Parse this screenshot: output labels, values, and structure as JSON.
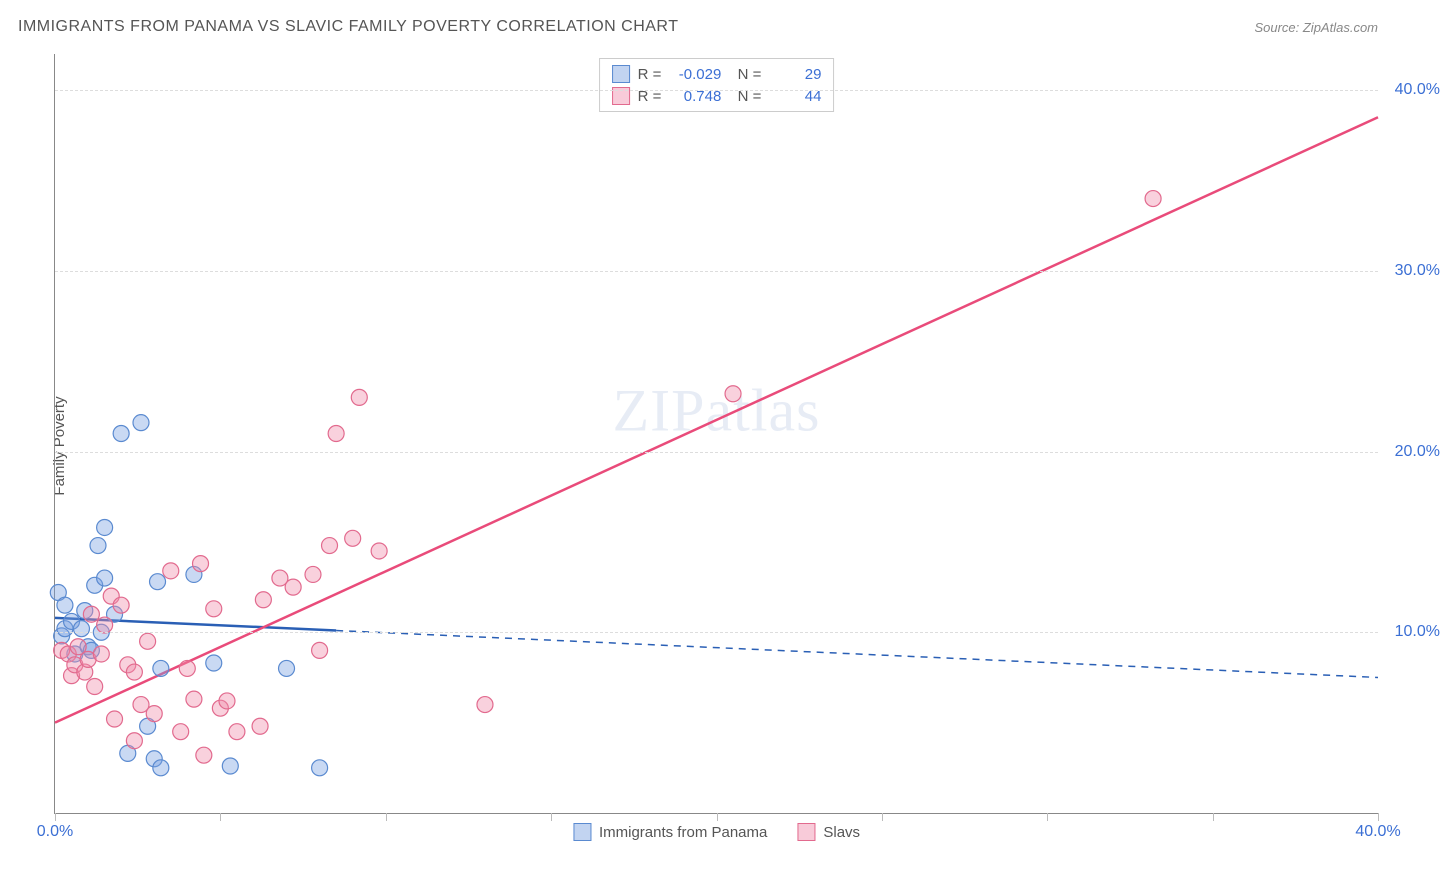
{
  "title": "IMMIGRANTS FROM PANAMA VS SLAVIC FAMILY POVERTY CORRELATION CHART",
  "source": "Source: ZipAtlas.com",
  "ylabel": "Family Poverty",
  "watermark": "ZIPatlas",
  "chart": {
    "type": "scatter",
    "xlim": [
      0,
      40
    ],
    "ylim": [
      0,
      42
    ],
    "yticks": [
      10,
      20,
      30,
      40
    ],
    "ytick_labels": [
      "10.0%",
      "20.0%",
      "30.0%",
      "40.0%"
    ],
    "xticks": [
      0,
      5,
      10,
      15,
      20,
      25,
      30,
      35,
      40
    ],
    "xtick_labels": [
      "0.0%",
      "",
      "",
      "",
      "",
      "",
      "",
      "",
      "40.0%"
    ],
    "grid_color": "#dddddd",
    "axis_color": "#888888",
    "background_color": "#ffffff",
    "marker_radius": 8,
    "marker_stroke_width": 1.2,
    "series": [
      {
        "name": "Immigrants from Panama",
        "fill": "rgba(120,160,225,0.40)",
        "stroke": "#5a8ad0",
        "R": "-0.029",
        "N": "29",
        "trend": {
          "x1": 0,
          "y1": 10.8,
          "x2": 40,
          "y2": 7.5,
          "solid_until_x": 8.5,
          "color": "#2a5fb5",
          "width": 2.5
        },
        "points": [
          [
            0.1,
            12.2
          ],
          [
            0.2,
            9.8
          ],
          [
            0.3,
            10.2
          ],
          [
            0.3,
            11.5
          ],
          [
            0.5,
            10.6
          ],
          [
            0.6,
            8.8
          ],
          [
            0.8,
            10.2
          ],
          [
            1.0,
            9.2
          ],
          [
            1.2,
            12.6
          ],
          [
            1.3,
            14.8
          ],
          [
            1.4,
            10.0
          ],
          [
            1.5,
            13.0
          ],
          [
            1.5,
            15.8
          ],
          [
            2.0,
            21.0
          ],
          [
            2.2,
            3.3
          ],
          [
            2.6,
            21.6
          ],
          [
            2.8,
            4.8
          ],
          [
            3.0,
            3.0
          ],
          [
            3.1,
            12.8
          ],
          [
            3.2,
            8.0
          ],
          [
            3.2,
            2.5
          ],
          [
            4.2,
            13.2
          ],
          [
            4.8,
            8.3
          ],
          [
            5.3,
            2.6
          ],
          [
            7.0,
            8.0
          ],
          [
            0.9,
            11.2
          ],
          [
            1.1,
            9.0
          ],
          [
            1.8,
            11.0
          ],
          [
            8.0,
            2.5
          ]
        ]
      },
      {
        "name": "Slavs",
        "fill": "rgba(240,140,170,0.40)",
        "stroke": "#e26a8e",
        "R": "0.748",
        "N": "44",
        "trend": {
          "x1": 0,
          "y1": 5.0,
          "x2": 40,
          "y2": 38.5,
          "solid_until_x": 40,
          "color": "#e94b7a",
          "width": 2.5
        },
        "points": [
          [
            0.2,
            9.0
          ],
          [
            0.4,
            8.8
          ],
          [
            0.5,
            7.6
          ],
          [
            0.6,
            8.2
          ],
          [
            0.7,
            9.2
          ],
          [
            0.9,
            7.8
          ],
          [
            1.0,
            8.5
          ],
          [
            1.1,
            11.0
          ],
          [
            1.2,
            7.0
          ],
          [
            1.4,
            8.8
          ],
          [
            1.5,
            10.4
          ],
          [
            1.7,
            12.0
          ],
          [
            1.8,
            5.2
          ],
          [
            2.0,
            11.5
          ],
          [
            2.2,
            8.2
          ],
          [
            2.4,
            4.0
          ],
          [
            2.4,
            7.8
          ],
          [
            2.6,
            6.0
          ],
          [
            2.8,
            9.5
          ],
          [
            3.0,
            5.5
          ],
          [
            3.5,
            13.4
          ],
          [
            3.8,
            4.5
          ],
          [
            4.0,
            8.0
          ],
          [
            4.4,
            13.8
          ],
          [
            4.5,
            3.2
          ],
          [
            4.8,
            11.3
          ],
          [
            5.0,
            5.8
          ],
          [
            5.2,
            6.2
          ],
          [
            5.5,
            4.5
          ],
          [
            6.2,
            4.8
          ],
          [
            6.3,
            11.8
          ],
          [
            6.8,
            13.0
          ],
          [
            7.2,
            12.5
          ],
          [
            7.8,
            13.2
          ],
          [
            8.0,
            9.0
          ],
          [
            8.3,
            14.8
          ],
          [
            8.5,
            21.0
          ],
          [
            9.0,
            15.2
          ],
          [
            9.2,
            23.0
          ],
          [
            9.8,
            14.5
          ],
          [
            13.0,
            6.0
          ],
          [
            20.5,
            23.2
          ],
          [
            33.2,
            34.0
          ],
          [
            4.2,
            6.3
          ]
        ]
      }
    ]
  },
  "legend_bottom": [
    {
      "label": "Immigrants from Panama",
      "fill": "rgba(120,160,225,0.45)",
      "stroke": "#5a8ad0"
    },
    {
      "label": "Slavs",
      "fill": "rgba(240,140,170,0.45)",
      "stroke": "#e26a8e"
    }
  ]
}
